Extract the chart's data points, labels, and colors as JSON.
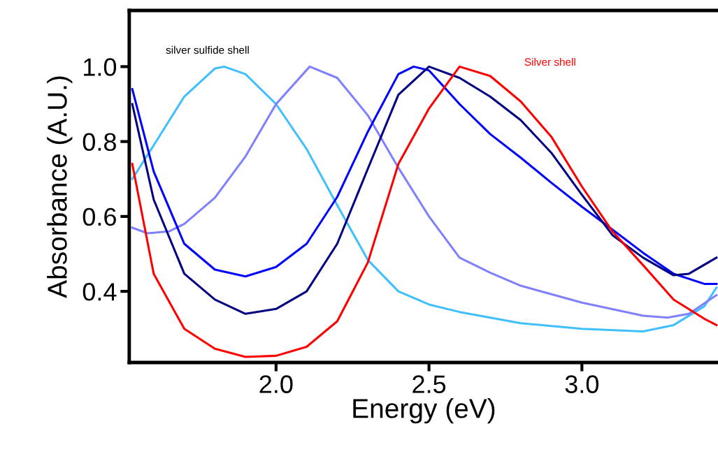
{
  "chart_data": {
    "type": "line",
    "xlabel": "Energy (eV)",
    "ylabel": "Absorbance (A.U.)",
    "xlim": [
      1.52,
      3.445
    ],
    "ylim": [
      0.21,
      1.15
    ],
    "xticks": [
      {
        "value": 2.0,
        "label": "2.0"
      },
      {
        "value": 2.5,
        "label": "2.5"
      },
      {
        "value": 3.0,
        "label": "3.0"
      }
    ],
    "yticks": [
      {
        "value": 0.4,
        "label": "0.4"
      },
      {
        "value": 0.6,
        "label": "0.6"
      },
      {
        "value": 0.8,
        "label": "0.8"
      },
      {
        "value": 1.0,
        "label": "1.0"
      }
    ],
    "marker": "none",
    "line_style": "solid",
    "annotations": [
      "silver sulfide shell",
      "Silver shell"
    ],
    "series": [
      {
        "color": "#40bfff",
        "x": [
          1.53,
          1.6,
          1.7,
          1.8,
          1.83,
          1.9,
          2.0,
          2.1,
          2.2,
          2.3,
          2.4,
          2.5,
          2.6,
          2.8,
          3.0,
          3.2,
          3.3,
          3.4,
          3.44
        ],
        "values": [
          0.7,
          0.79,
          0.92,
          0.995,
          1.0,
          0.98,
          0.9,
          0.78,
          0.63,
          0.484,
          0.4,
          0.365,
          0.345,
          0.315,
          0.3,
          0.293,
          0.31,
          0.36,
          0.41
        ]
      },
      {
        "color": "#8080ff",
        "x": [
          1.53,
          1.58,
          1.65,
          1.7,
          1.8,
          1.9,
          2.0,
          2.11,
          2.2,
          2.3,
          2.4,
          2.5,
          2.6,
          2.7,
          2.8,
          3.0,
          3.2,
          3.28,
          3.35,
          3.44
        ],
        "values": [
          0.57,
          0.555,
          0.56,
          0.58,
          0.65,
          0.76,
          0.9,
          1.0,
          0.97,
          0.87,
          0.73,
          0.6,
          0.49,
          0.45,
          0.415,
          0.37,
          0.335,
          0.33,
          0.34,
          0.39
        ]
      },
      {
        "color": "#0000ff",
        "x": [
          1.53,
          1.6,
          1.7,
          1.8,
          1.9,
          2.0,
          2.1,
          2.2,
          2.3,
          2.4,
          2.45,
          2.5,
          2.6,
          2.7,
          2.8,
          2.9,
          3.0,
          3.1,
          3.2,
          3.3,
          3.4,
          3.44
        ],
        "values": [
          0.94,
          0.72,
          0.527,
          0.458,
          0.44,
          0.465,
          0.527,
          0.652,
          0.826,
          0.98,
          1.0,
          0.99,
          0.9,
          0.82,
          0.757,
          0.69,
          0.626,
          0.565,
          0.503,
          0.447,
          0.42,
          0.42
        ]
      },
      {
        "color": "#000080",
        "x": [
          1.53,
          1.6,
          1.7,
          1.8,
          1.9,
          2.0,
          2.1,
          2.2,
          2.3,
          2.4,
          2.5,
          2.6,
          2.7,
          2.8,
          2.9,
          3.0,
          3.1,
          3.2,
          3.3,
          3.35,
          3.44
        ],
        "values": [
          0.9,
          0.645,
          0.447,
          0.378,
          0.34,
          0.353,
          0.4,
          0.527,
          0.727,
          0.925,
          1.0,
          0.97,
          0.92,
          0.857,
          0.77,
          0.658,
          0.55,
          0.49,
          0.443,
          0.447,
          0.49
        ]
      },
      {
        "color": "#ff0000",
        "x": [
          1.53,
          1.6,
          1.7,
          1.8,
          1.9,
          2.0,
          2.1,
          2.2,
          2.3,
          2.4,
          2.5,
          2.6,
          2.7,
          2.8,
          2.9,
          3.0,
          3.1,
          3.2,
          3.3,
          3.4,
          3.44
        ],
        "values": [
          0.74,
          0.447,
          0.3,
          0.247,
          0.225,
          0.228,
          0.252,
          0.32,
          0.477,
          0.74,
          0.888,
          1.0,
          0.975,
          0.907,
          0.813,
          0.68,
          0.56,
          0.47,
          0.378,
          0.327,
          0.31
        ]
      }
    ]
  }
}
